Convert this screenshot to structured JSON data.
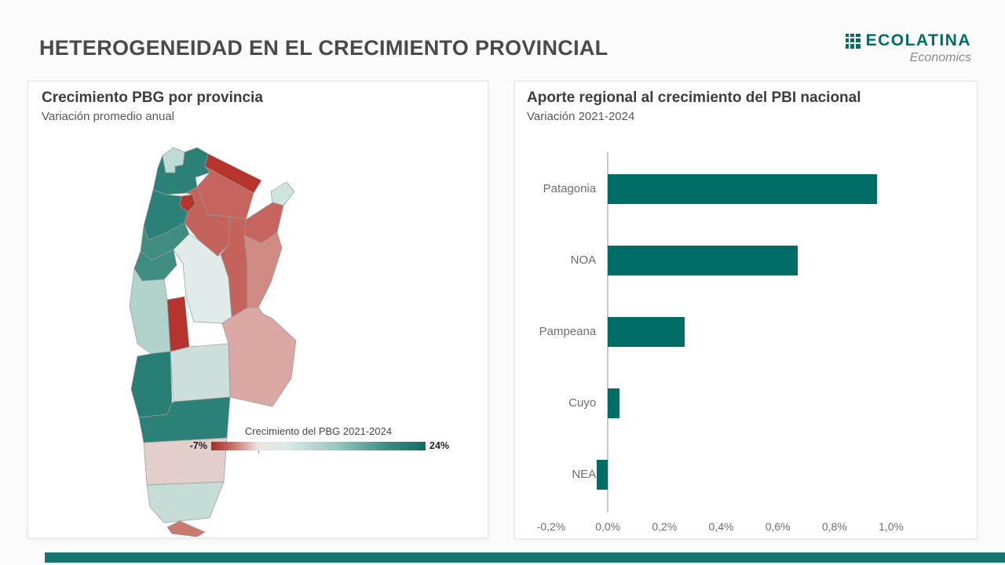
{
  "header": {
    "title": "HETEROGENEIDAD EN EL CRECIMIENTO PROVINCIAL"
  },
  "logo": {
    "name": "ECOLATINA",
    "tagline": "Economics",
    "color": "#006d68"
  },
  "theme": {
    "footer_accent": "#16756e",
    "background": "#fbfbfb",
    "card_border": "#e4e4e4"
  },
  "chart_data": [
    {
      "type": "heatmap",
      "subtype": "choropleth-map-argentina",
      "title": "Crecimiento PBG por provincia",
      "subtitle": "Variación promedio anual",
      "legend": {
        "title": "Crecimiento del PBG 2021-2024",
        "min_label": "-7%",
        "max_label": "24%",
        "gradient_stops": [
          "#a42f26 0%",
          "#c96f66 10%",
          "#ece5e2 22%",
          "#dce9e6 35%",
          "#9cc8c0 58%",
          "#439084 80%",
          "#0f6e66 100%"
        ]
      },
      "provinces": [
        {
          "id": "jujuy",
          "name": "Jujuy",
          "color": "#bedcd6"
        },
        {
          "id": "salta",
          "name": "Salta",
          "color": "#2b8177"
        },
        {
          "id": "formosa",
          "name": "Formosa",
          "color": "#b5352e"
        },
        {
          "id": "chaco",
          "name": "Chaco",
          "color": "#c5655e"
        },
        {
          "id": "misiones",
          "name": "Misiones",
          "color": "#d0e4df"
        },
        {
          "id": "corrientes",
          "name": "Corrientes",
          "color": "#c5655e"
        },
        {
          "id": "tucuman",
          "name": "Tucumán",
          "color": "#b5352e"
        },
        {
          "id": "catamarca",
          "name": "Catamarca",
          "color": "#2b8177"
        },
        {
          "id": "santiago_del_estero",
          "name": "Santiago del Estero",
          "color": "#c4635c"
        },
        {
          "id": "la_rioja",
          "name": "La Rioja",
          "color": "#3f8c81"
        },
        {
          "id": "santa_fe",
          "name": "Santa Fe",
          "color": "#c4635c"
        },
        {
          "id": "entre_rios",
          "name": "Entre Ríos",
          "color": "#d08b84"
        },
        {
          "id": "cordoba",
          "name": "Córdoba",
          "color": "#e1ebe9"
        },
        {
          "id": "san_juan",
          "name": "San Juan",
          "color": "#3f8c81"
        },
        {
          "id": "san_luis",
          "name": "San Luis",
          "color": "#b5352e"
        },
        {
          "id": "mendoza",
          "name": "Mendoza",
          "color": "#b2d3cc"
        },
        {
          "id": "la_pampa",
          "name": "La Pampa",
          "color": "#cddfda"
        },
        {
          "id": "buenos_aires",
          "name": "Buenos Aires",
          "color": "#dba7a3"
        },
        {
          "id": "neuquen",
          "name": "Neuquén",
          "color": "#277e74"
        },
        {
          "id": "rio_negro",
          "name": "Río Negro",
          "color": "#2b8177"
        },
        {
          "id": "chubut",
          "name": "Chubut",
          "color": "#e2cecb"
        },
        {
          "id": "santa_cruz",
          "name": "Santa Cruz",
          "color": "#c6dcd6"
        },
        {
          "id": "tierra_del_fuego",
          "name": "Tierra del Fuego",
          "color": "#c97970"
        }
      ]
    },
    {
      "type": "bar",
      "orientation": "horizontal",
      "title": "Aporte regional al crecimiento del PBI nacional",
      "subtitle": "Variación 2021-2024",
      "categories": [
        "Patagonia",
        "NOA",
        "Pampeana",
        "Cuyo",
        "NEA"
      ],
      "values": [
        0.95,
        0.67,
        0.27,
        0.04,
        -0.04
      ],
      "unit": "%",
      "xlim": [
        -0.2,
        1.0
      ],
      "x_ticks": [
        "-0,2%",
        "0,0%",
        "0,2%",
        "0,4%",
        "0,6%",
        "0,8%",
        "1,0%"
      ],
      "x_tick_values": [
        -0.2,
        0.0,
        0.2,
        0.4,
        0.6,
        0.8,
        1.0
      ],
      "bar_color": "#006c66",
      "grid": false,
      "legend_position": "none"
    }
  ]
}
